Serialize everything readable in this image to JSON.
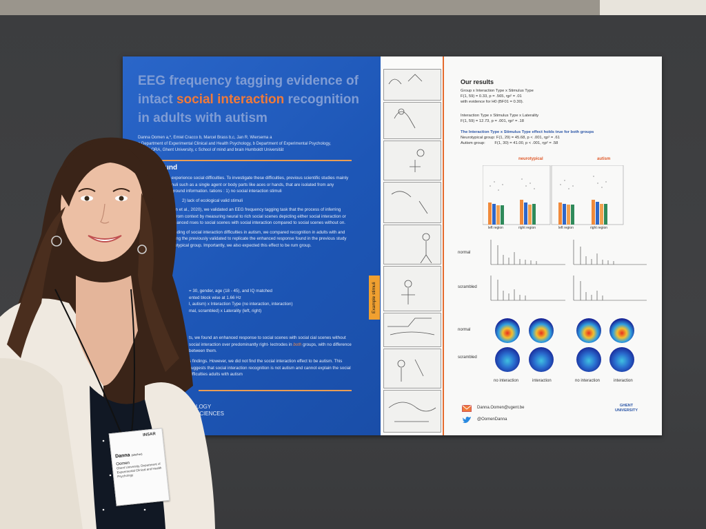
{
  "poster": {
    "title_part1": "EEG frequency tagging evidence of",
    "title_part2a": "intact ",
    "title_highlight": "social interaction",
    "title_part2b": " recognition",
    "title_part3": "in adults with autism",
    "authors_line": "Danna Oomen a,*, Emiel Cracco b, Marcel Brass b,c, Jan R. Wiersema a",
    "affil_1": "a Department of Experimental Clinical and Health Psychology, b Department of Experimental Psychology,",
    "affil_2": "* EXPLORA, Ghent University, c School of mind and brain Humboldt Universität",
    "background_heading": "ackground",
    "bg_p1": "ple with autism experience social difficulties. To investigate these difficulties, previous scientific studies mainly used simple stimuli such as a single agent or body parts like aces or hands, that are isolated from any contextual background information. tations :      1) no social interaction stimuli",
    "bg_p1b": "2) lack of ecological valid stimuli",
    "bg_p2": "ious study (Oomen et al., 2020), we validated an EEG frequency tagging task that the process of inferring social interaction from context by measuring neural to rich social scenes depicting either social interaction or not. We found enhanced nses to social scenes with social interaction compared to social scenes without on.",
    "bg_p3": "ther our understanding of social interaction difficulties in autism, we compared recognition in adults with and without autism using the previously validated to replicate the enhanced response found in the previous study to social the neurotypical group. Importantly, we also expected this effect to be rum group.",
    "method_1": "= 30, gender, age (18 - 45), and IQ matched",
    "method_2": "ented block wise at 1.66 Hz",
    "method_3": "l, autism) x  Interaction Type (no interaction, interaction)",
    "method_4": "mal, scrambled) x  Laterality (left, right)",
    "results_summary_1": "ts, we found an enhanced response to social scenes with social cial scenes without social interaction over predominantly right- lectrodes in ",
    "results_summary_em": "both",
    "results_summary_2": " groups, with no difference between them.",
    "conclusion": "s findings. However, we did not find the social interaction effect to be autism. This suggests that social interaction recognition is not autism and cannot explain the social difficulties adults with autism",
    "logo_line1": "LOGY",
    "logo_line2": "SCIENCES",
    "stimuli_tab": "Example stimuli",
    "results_heading": "Our results",
    "stat_1": "Group x Interaction Type x Stimulus Type",
    "stat_2": "F(1, 59) = 0.33, p = .565, ηp² = .01",
    "stat_3": "with evidence for H0 (BF01 = 0.30).",
    "stat_4": "Interaction Type x Stimulus Type x Laterality",
    "stat_5": "F(1, 59) = 12.73, p = .001, ηp² = .18",
    "stat_6": "The Interaction Type x Stimulus Type effect holds true for both groups",
    "stat_7_label": "Neurotypical group:",
    "stat_7_value": "F(1, 29) = 45.68, p < .001, ηp² = .61",
    "stat_8_label": "Autism group:",
    "stat_8_value": "F(1, 30) = 41.00, p < .001, ηp² = .58",
    "chart_head_left": "neurotypical",
    "chart_head_right": "autism",
    "region_left": "left region",
    "region_right": "right region",
    "row_normal": "normal",
    "row_scrambled": "scrambled",
    "col_no_interaction": "no interaction",
    "col_interaction": "interaction",
    "email": "Danna.Oomen@ugent.be",
    "twitter": "@OomenDanna",
    "ghent_1": "GHENT",
    "ghent_2": "UNIVERSITY"
  },
  "badge": {
    "name": "Danna",
    "pronoun": "(she/her)",
    "surname": "Oomen",
    "affiliation": "Ghent University, Department of Experimental Clinical and Health Psychology",
    "logo": "INSAR"
  },
  "colors": {
    "poster_blue": "#1d56b6",
    "accent_orange": "#f07a3a",
    "bar_orange": "#f08a3a",
    "bar_blue": "#2f67c8",
    "bar_green": "#2f8a5a"
  }
}
